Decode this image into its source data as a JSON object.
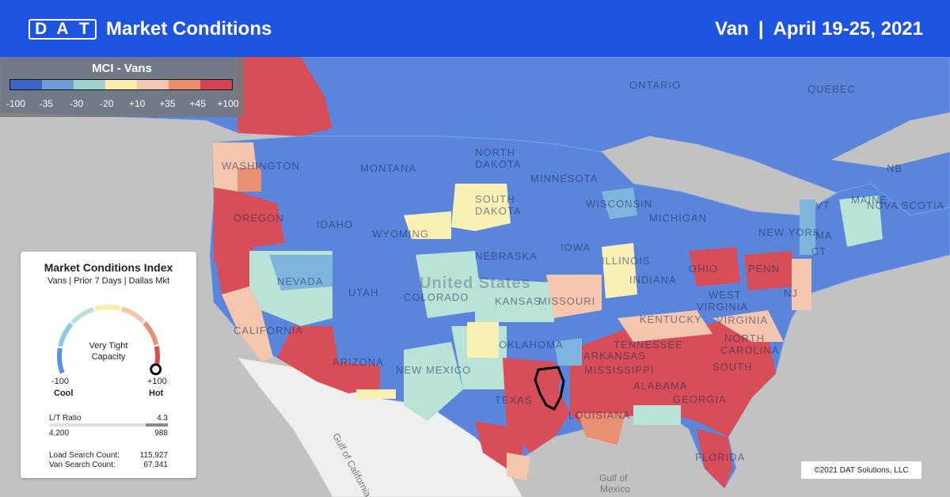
{
  "header": {
    "logo_letters": [
      "D",
      "A",
      "T"
    ],
    "title": "Market Conditions",
    "equipment": "Van",
    "separator": "|",
    "date_range": "April 19-25, 2021"
  },
  "legend": {
    "title": "MCI - Vans",
    "colors": [
      "#3d64c8",
      "#6b9fd8",
      "#9ed2cf",
      "#f7eeaa",
      "#f4c5b0",
      "#e98f6a",
      "#d6424f"
    ],
    "ticks": [
      "-100",
      "-35",
      "-30",
      "-20",
      "+10",
      "+35",
      "+45",
      "+100"
    ]
  },
  "map": {
    "colors": {
      "water": "#c2c2c2",
      "foreign": "#efefef",
      "cool": "#5a85db",
      "medium_cool": "#7fb4dc",
      "neutral": "#b9e3d6",
      "balanced": "#f8f0b4",
      "warm": "#f4c6ae",
      "hot": "#e06e5e",
      "very_hot": "#d84e58"
    },
    "labels": {
      "ontario": "ONTARIO",
      "quebec": "QUEBEC",
      "washington": "WASHINGTON",
      "montana": "MONTANA",
      "north_dakota_1": "NORTH",
      "north_dakota_2": "DAKOTA",
      "minnesota": "MINNESOTA",
      "south_dakota_1": "SOUTH",
      "south_dakota_2": "DAKOTA",
      "wisconsin": "WISCONSIN",
      "michigan": "MICHIGAN",
      "oregon": "OREGON",
      "idaho": "IDAHO",
      "wyoming": "WYOMING",
      "nebraska": "NEBRASKA",
      "iowa": "IOWA",
      "illinois": "ILLINOIS",
      "new_york": "NEW YORK",
      "nb": "NB",
      "maine": "MAINE",
      "nova_scotia": "NOVA SCOTIA",
      "vermont": "VT",
      "massachusetts": "MA",
      "connecticut": "CT",
      "nevada": "NEVADA",
      "utah": "UTAH",
      "colorado": "COLORADO",
      "kansas": "KANSAS",
      "united_states": "United States",
      "missouri": "MISSOURI",
      "indiana": "INDIANA",
      "ohio": "OHIO",
      "pennsylvania": "PENN",
      "new_jersey": "NJ",
      "west_virginia_1": "WEST",
      "west_virginia_2": "VIRGINIA",
      "virginia": "VIRGINIA",
      "kentucky": "KENTUCKY",
      "california": "CALIFORNIA",
      "arizona": "ARIZONA",
      "new_mexico": "NEW MEXICO",
      "oklahoma": "OKLAHOMA",
      "tennessee": "TENNESSEE",
      "north_carolina_1": "NORTH",
      "north_carolina_2": "CAROLINA",
      "arkansas": "ARKANSAS",
      "mississippi": "MISSISSIPPI",
      "alabama": "ALABAMA",
      "georgia": "GEORGIA",
      "south_carolina": "SOUTH",
      "texas": "TEXAS",
      "louisiana": "LOUISIANA",
      "florida": "FLORIDA",
      "gulf_of_california": "Gulf of California",
      "gulf_of_mexico_1": "Gulf of",
      "gulf_of_mexico_2": "Mexico"
    },
    "highlighted_market": "Dallas"
  },
  "card": {
    "title": "Market Conditions Index",
    "subtitle": "Vans | Prior 7 Days | Dallas Mkt",
    "status_line1": "Very Tight",
    "status_line2": "Capacity",
    "min_value": "-100",
    "min_label": "Cool",
    "max_value": "+100",
    "max_label": "Hot",
    "gauge_level": 0.98,
    "gauge_colors": [
      "#5b8fe0",
      "#8ec7e3",
      "#b8e3d4",
      "#f7eea8",
      "#f3c6ae",
      "#e98f73",
      "#d84e58"
    ],
    "lt_label": "L/T Ratio",
    "lt_value": "4.3",
    "lt_loads": "4,200",
    "lt_trucks": "988",
    "lt_fraction": 0.19,
    "load_search_label": "Load Search Count:",
    "load_search_value": "115,927",
    "van_search_label": "Van Search Count:",
    "van_search_value": "67,341"
  },
  "footer": {
    "credit": "©2021 DAT Solutions, LLC"
  }
}
